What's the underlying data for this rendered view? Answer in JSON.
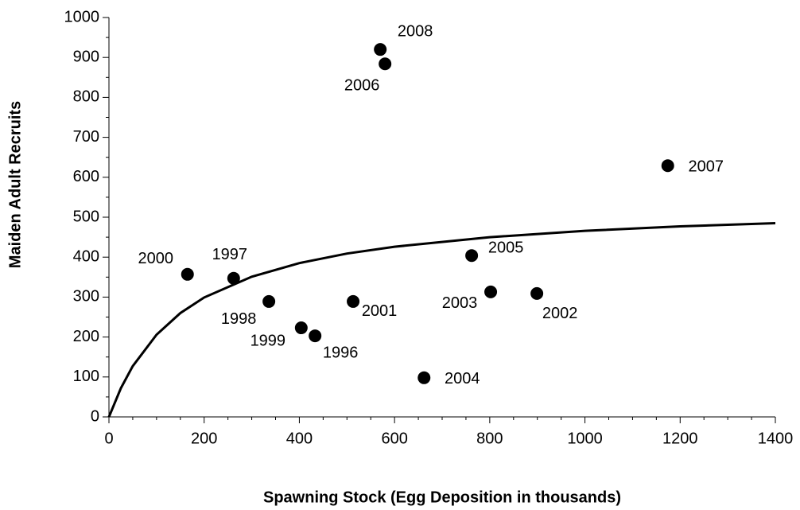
{
  "chart_data": {
    "type": "scatter",
    "xlabel": "Spawning Stock (Egg Deposition in thousands)",
    "ylabel": "Maiden Adult Recruits",
    "xlim": [
      0,
      1400
    ],
    "ylim": [
      0,
      1000
    ],
    "xticks": [
      0,
      200,
      400,
      600,
      800,
      1000,
      1200,
      1400
    ],
    "yticks": [
      0,
      100,
      200,
      300,
      400,
      500,
      600,
      700,
      800,
      900,
      1000
    ],
    "xminorticks": [
      50,
      100,
      150,
      250,
      300,
      350,
      450,
      500,
      550,
      650,
      700,
      750,
      850,
      900,
      950,
      1050,
      1100,
      1150,
      1250,
      1300,
      1350
    ],
    "yminorticks": [
      50,
      150,
      250,
      350,
      450,
      550,
      650,
      750,
      850,
      950
    ],
    "points": {
      "color": "#000000",
      "labels": [
        "1996",
        "1997",
        "1998",
        "1999",
        "2000",
        "2001",
        "2002",
        "2003",
        "2004",
        "2005",
        "2006",
        "2007",
        "2008"
      ],
      "x": [
        433,
        262,
        336,
        404,
        165,
        513,
        899,
        802,
        662,
        762,
        580,
        1174,
        570
      ],
      "values": [
        203,
        347,
        289,
        223,
        357,
        289,
        309,
        313,
        98,
        404,
        884,
        629,
        920
      ]
    },
    "curve": {
      "color": "#000000",
      "x": [
        0,
        25,
        50,
        100,
        150,
        200,
        300,
        400,
        500,
        600,
        800,
        1000,
        1200,
        1400
      ],
      "values": [
        0,
        72,
        127,
        206,
        260,
        299,
        351,
        385,
        409,
        426,
        450,
        466,
        477,
        485
      ]
    }
  }
}
